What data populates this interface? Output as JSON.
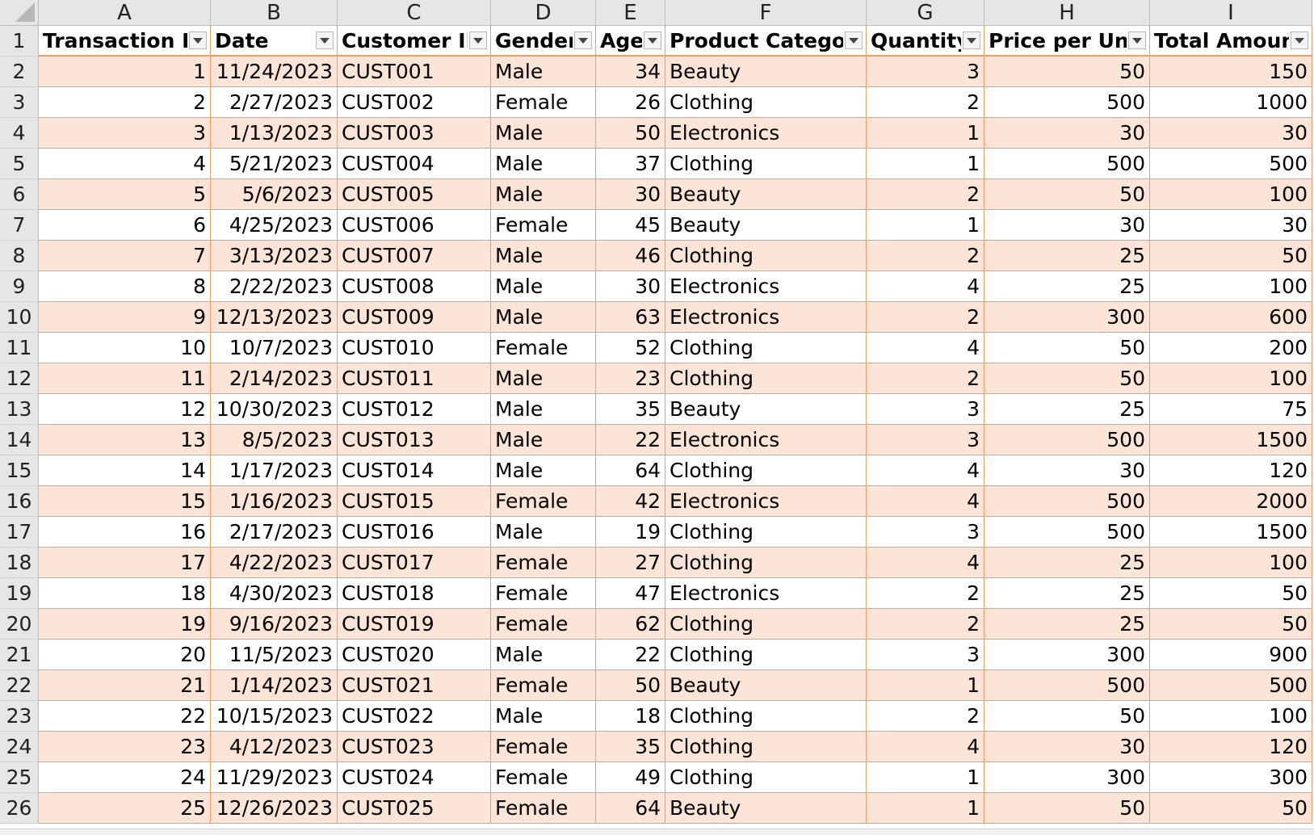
{
  "spreadsheet": {
    "columns": [
      "A",
      "B",
      "C",
      "D",
      "E",
      "F",
      "G",
      "H",
      "I"
    ],
    "headers": [
      "Transaction ID",
      "Date",
      "Customer ID",
      "Gender",
      "Age",
      "Product Category",
      "Quantity",
      "Price per Unit",
      "Total Amount"
    ],
    "row_numbers": [
      "1",
      "2",
      "3",
      "4",
      "5",
      "6",
      "7",
      "8",
      "9",
      "10",
      "11",
      "12",
      "13",
      "14",
      "15",
      "16",
      "17",
      "18",
      "19",
      "20",
      "21",
      "22",
      "23",
      "24",
      "25",
      "26"
    ],
    "rows": [
      [
        "1",
        "11/24/2023",
        "CUST001",
        "Male",
        "34",
        "Beauty",
        "3",
        "50",
        "150"
      ],
      [
        "2",
        "2/27/2023",
        "CUST002",
        "Female",
        "26",
        "Clothing",
        "2",
        "500",
        "1000"
      ],
      [
        "3",
        "1/13/2023",
        "CUST003",
        "Male",
        "50",
        "Electronics",
        "1",
        "30",
        "30"
      ],
      [
        "4",
        "5/21/2023",
        "CUST004",
        "Male",
        "37",
        "Clothing",
        "1",
        "500",
        "500"
      ],
      [
        "5",
        "5/6/2023",
        "CUST005",
        "Male",
        "30",
        "Beauty",
        "2",
        "50",
        "100"
      ],
      [
        "6",
        "4/25/2023",
        "CUST006",
        "Female",
        "45",
        "Beauty",
        "1",
        "30",
        "30"
      ],
      [
        "7",
        "3/13/2023",
        "CUST007",
        "Male",
        "46",
        "Clothing",
        "2",
        "25",
        "50"
      ],
      [
        "8",
        "2/22/2023",
        "CUST008",
        "Male",
        "30",
        "Electronics",
        "4",
        "25",
        "100"
      ],
      [
        "9",
        "12/13/2023",
        "CUST009",
        "Male",
        "63",
        "Electronics",
        "2",
        "300",
        "600"
      ],
      [
        "10",
        "10/7/2023",
        "CUST010",
        "Female",
        "52",
        "Clothing",
        "4",
        "50",
        "200"
      ],
      [
        "11",
        "2/14/2023",
        "CUST011",
        "Male",
        "23",
        "Clothing",
        "2",
        "50",
        "100"
      ],
      [
        "12",
        "10/30/2023",
        "CUST012",
        "Male",
        "35",
        "Beauty",
        "3",
        "25",
        "75"
      ],
      [
        "13",
        "8/5/2023",
        "CUST013",
        "Male",
        "22",
        "Electronics",
        "3",
        "500",
        "1500"
      ],
      [
        "14",
        "1/17/2023",
        "CUST014",
        "Male",
        "64",
        "Clothing",
        "4",
        "30",
        "120"
      ],
      [
        "15",
        "1/16/2023",
        "CUST015",
        "Female",
        "42",
        "Electronics",
        "4",
        "500",
        "2000"
      ],
      [
        "16",
        "2/17/2023",
        "CUST016",
        "Male",
        "19",
        "Clothing",
        "3",
        "500",
        "1500"
      ],
      [
        "17",
        "4/22/2023",
        "CUST017",
        "Female",
        "27",
        "Clothing",
        "4",
        "25",
        "100"
      ],
      [
        "18",
        "4/30/2023",
        "CUST018",
        "Female",
        "47",
        "Electronics",
        "2",
        "25",
        "50"
      ],
      [
        "19",
        "9/16/2023",
        "CUST019",
        "Female",
        "62",
        "Clothing",
        "2",
        "25",
        "50"
      ],
      [
        "20",
        "11/5/2023",
        "CUST020",
        "Male",
        "22",
        "Clothing",
        "3",
        "300",
        "900"
      ],
      [
        "21",
        "1/14/2023",
        "CUST021",
        "Female",
        "50",
        "Beauty",
        "1",
        "500",
        "500"
      ],
      [
        "22",
        "10/15/2023",
        "CUST022",
        "Male",
        "18",
        "Clothing",
        "2",
        "50",
        "100"
      ],
      [
        "23",
        "4/12/2023",
        "CUST023",
        "Female",
        "35",
        "Clothing",
        "4",
        "30",
        "120"
      ],
      [
        "24",
        "11/29/2023",
        "CUST024",
        "Female",
        "49",
        "Clothing",
        "1",
        "300",
        "300"
      ],
      [
        "25",
        "12/26/2023",
        "CUST025",
        "Female",
        "64",
        "Beauty",
        "1",
        "50",
        "50"
      ]
    ],
    "numeric_columns": [
      0,
      1,
      4,
      6,
      7,
      8
    ],
    "banded_row_color": "#fce4d6",
    "table_border_color": "#e8a06a",
    "header_bg": "#e6e6e6",
    "filter_icon": "filter-dropdown-icon"
  }
}
